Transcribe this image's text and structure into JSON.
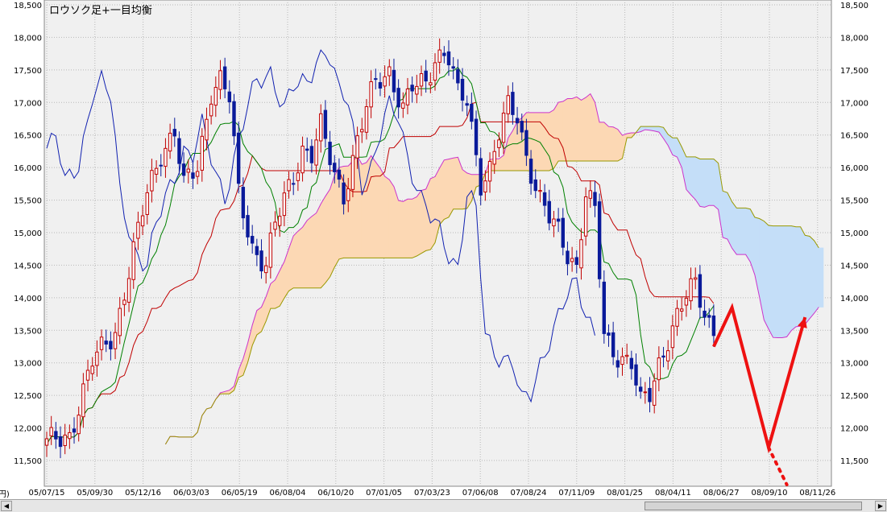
{
  "chart_data": {
    "type": "line",
    "title": "ロウソク足+一目均衡",
    "y_unit": "(円)",
    "ylim": [
      11000,
      18500
    ],
    "y_ticks": [
      11500,
      12000,
      12500,
      13000,
      13500,
      14000,
      14500,
      15000,
      15500,
      16000,
      16500,
      17000,
      17500,
      18000,
      18500
    ],
    "y_tick_labels": [
      "11,500",
      "12,000",
      "12,500",
      "13,000",
      "13,500",
      "14,000",
      "14,500",
      "15,000",
      "15,500",
      "16,000",
      "16,500",
      "17,000",
      "17,500",
      "18,000",
      "18,500"
    ],
    "x_tick_labels": [
      "05/07/15",
      "05/09/30",
      "05/12/16",
      "06/03/03",
      "06/05/19",
      "06/08/04",
      "06/10/20",
      "07/01/05",
      "07/03/23",
      "07/06/08",
      "07/08/24",
      "07/11/09",
      "08/01/25",
      "08/04/11",
      "08/06/27",
      "08/09/10",
      "08/11/26"
    ],
    "grid": true,
    "periods": 170,
    "colors": {
      "candle_up": "#c00000",
      "candle_down": "#0a1a9a",
      "tenkan": "#008000",
      "kijun": "#c00000",
      "chikou": "#1020b0",
      "senkou_a": "#cc33cc",
      "senkou_b": "#999900",
      "kumo_bull": "#fcd8b4",
      "kumo_bear": "#c4def8",
      "forecast": "#ee1111"
    },
    "close_anchors": [
      [
        0,
        11750
      ],
      [
        5,
        11900
      ],
      [
        10,
        13000
      ],
      [
        15,
        13500
      ],
      [
        20,
        15000
      ],
      [
        22,
        15600
      ],
      [
        25,
        16250
      ],
      [
        28,
        16550
      ],
      [
        30,
        15700
      ],
      [
        33,
        16000
      ],
      [
        36,
        17200
      ],
      [
        38,
        17350
      ],
      [
        40,
        17050
      ],
      [
        42,
        15600
      ],
      [
        45,
        14800
      ],
      [
        48,
        14500
      ],
      [
        50,
        15100
      ],
      [
        53,
        15700
      ],
      [
        56,
        16300
      ],
      [
        58,
        16200
      ],
      [
        60,
        16600
      ],
      [
        63,
        15900
      ],
      [
        65,
        15600
      ],
      [
        68,
        16400
      ],
      [
        70,
        16900
      ],
      [
        72,
        17300
      ],
      [
        75,
        17500
      ],
      [
        78,
        16900
      ],
      [
        80,
        17200
      ],
      [
        83,
        17300
      ],
      [
        85,
        17700
      ],
      [
        87,
        17800
      ],
      [
        88,
        17700
      ],
      [
        90,
        17100
      ],
      [
        92,
        17000
      ],
      [
        94,
        16200
      ],
      [
        95,
        15800
      ],
      [
        97,
        16000
      ],
      [
        99,
        16500
      ],
      [
        101,
        16900
      ],
      [
        103,
        16800
      ],
      [
        105,
        16200
      ],
      [
        108,
        15500
      ],
      [
        110,
        15200
      ],
      [
        112,
        15000
      ],
      [
        114,
        14700
      ],
      [
        116,
        14500
      ],
      [
        118,
        15600
      ],
      [
        120,
        15300
      ],
      [
        122,
        13400
      ],
      [
        124,
        13200
      ],
      [
        126,
        13100
      ],
      [
        128,
        13000
      ],
      [
        130,
        12350
      ],
      [
        132,
        12500
      ],
      [
        134,
        13000
      ],
      [
        136,
        13400
      ],
      [
        138,
        13700
      ],
      [
        140,
        14000
      ],
      [
        142,
        14200
      ],
      [
        144,
        13800
      ],
      [
        146,
        13500
      ]
    ],
    "forecast_path": [
      [
        146,
        13250
      ],
      [
        150,
        13850
      ],
      [
        158,
        11700
      ],
      [
        166,
        13700
      ]
    ],
    "forecast_dotted": [
      [
        158,
        11700
      ],
      [
        162,
        11000
      ]
    ]
  }
}
